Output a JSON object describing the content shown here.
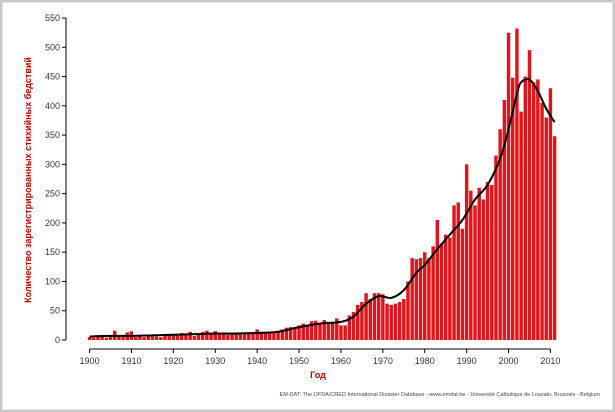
{
  "chart_data": {
    "type": "bar",
    "title": "",
    "xlabel": "Год",
    "ylabel": "Количество зарегистрированных стихийных бедствий",
    "x_ticks": [
      "1900",
      "1910",
      "1920",
      "1930",
      "1940",
      "1950",
      "1960",
      "1970",
      "1980",
      "1990",
      "2000",
      "2010"
    ],
    "y_ticks": [
      "0",
      "50",
      "100",
      "150",
      "200",
      "250",
      "300",
      "350",
      "400",
      "450",
      "500",
      "550"
    ],
    "xlim": [
      1897,
      2013
    ],
    "ylim": [
      0,
      550
    ],
    "grid": false,
    "source_note": "EM-DAT: The OFDA/CRED International Disaster Database - www.emdat.be - Université Catholique de Louvain, Brussels - Belgium",
    "colors": {
      "bar": "#e0141a",
      "trend": "#000000",
      "axis_title": "#c00000"
    },
    "series": [
      {
        "x": [
          1900,
          1901,
          1902,
          1903,
          1904,
          1905,
          1906,
          1907,
          1908,
          1909,
          1910,
          1911,
          1912,
          1913,
          1914,
          1915,
          1916,
          1917,
          1918,
          1919,
          1920,
          1921,
          1922,
          1923,
          1924,
          1925,
          1926,
          1927,
          1928,
          1929,
          1930,
          1931,
          1932,
          1933,
          1934,
          1935,
          1936,
          1937,
          1938,
          1939,
          1940,
          1941,
          1942,
          1943,
          1944,
          1945,
          1946,
          1947,
          1948,
          1949,
          1950,
          1951,
          1952,
          1953,
          1954,
          1955,
          1956,
          1957,
          1958,
          1959,
          1960,
          1961,
          1962,
          1963,
          1964,
          1965,
          1966,
          1967,
          1968,
          1969,
          1970,
          1971,
          1972,
          1973,
          1974,
          1975,
          1976,
          1977,
          1978,
          1979,
          1980,
          1981,
          1982,
          1983,
          1984,
          1985,
          1986,
          1987,
          1988,
          1989,
          1990,
          1991,
          1992,
          1993,
          1994,
          1995,
          1996,
          1997,
          1998,
          1999,
          2000,
          2001,
          2002,
          2003,
          2004,
          2005,
          2006,
          2007,
          2008,
          2009,
          2010,
          2011
        ],
        "values": [
          5,
          4,
          8,
          6,
          4,
          7,
          16,
          7,
          5,
          13,
          15,
          5,
          6,
          5,
          7,
          6,
          6,
          5,
          7,
          8,
          8,
          9,
          12,
          8,
          14,
          7,
          10,
          14,
          16,
          10,
          15,
          11,
          12,
          9,
          11,
          12,
          10,
          13,
          12,
          11,
          18,
          12,
          13,
          14,
          12,
          15,
          18,
          21,
          22,
          22,
          25,
          28,
          25,
          32,
          33,
          27,
          34,
          28,
          31,
          37,
          25,
          25,
          42,
          48,
          60,
          65,
          80,
          70,
          80,
          80,
          78,
          62,
          60,
          62,
          65,
          70,
          100,
          140,
          138,
          140,
          150,
          140,
          160,
          205,
          165,
          180,
          175,
          230,
          235,
          190,
          300,
          255,
          230,
          260,
          240,
          270,
          265,
          315,
          360,
          410,
          525,
          448,
          532,
          390,
          450,
          495,
          440,
          445,
          405,
          380,
          430,
          348
        ]
      }
    ],
    "trend_line": {
      "x": [
        1900,
        1905,
        1910,
        1915,
        1920,
        1925,
        1930,
        1935,
        1940,
        1945,
        1950,
        1955,
        1960,
        1963,
        1966,
        1969,
        1972,
        1975,
        1978,
        1980,
        1983,
        1986,
        1989,
        1992,
        1995,
        1998,
        2000,
        2002,
        2003,
        2005,
        2007,
        2009,
        2011
      ],
      "values": [
        6,
        7,
        7,
        8,
        9,
        10,
        11,
        11,
        12,
        14,
        22,
        28,
        31,
        40,
        62,
        75,
        72,
        85,
        115,
        128,
        155,
        180,
        205,
        240,
        265,
        310,
        360,
        420,
        440,
        445,
        425,
        395,
        372
      ]
    }
  }
}
